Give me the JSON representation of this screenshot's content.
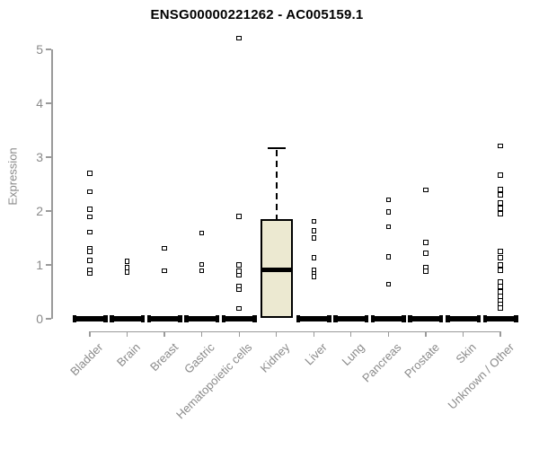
{
  "chart_data": {
    "type": "boxplot",
    "title": "ENSG00000221262 - AC005159.1",
    "ylabel": "Expression",
    "xlabel": "",
    "ylim": [
      0,
      5
    ],
    "yticks": [
      0,
      1,
      2,
      3,
      4,
      5
    ],
    "grid": false,
    "legend": false,
    "categories": [
      "Bladder",
      "Brain",
      "Breast",
      "Gastric",
      "Hematopoietic cells",
      "Kidney",
      "Liver",
      "Lung",
      "Pancreas",
      "Prostate",
      "Skin",
      "Unknown / Other"
    ],
    "series": [
      {
        "category": "Bladder",
        "zero_bar": true,
        "points": [
          2.7,
          2.36,
          2.03,
          1.89,
          1.61,
          1.31,
          1.25,
          1.08,
          0.91,
          0.84
        ]
      },
      {
        "category": "Brain",
        "zero_bar": true,
        "points": [
          1.07,
          0.95,
          0.87
        ]
      },
      {
        "category": "Breast",
        "zero_bar": true,
        "points": [
          1.31,
          0.89
        ]
      },
      {
        "category": "Gastric",
        "zero_bar": true,
        "points": [
          1.59,
          1.01,
          0.89
        ]
      },
      {
        "category": "Hematopoietic cells",
        "zero_bar": true,
        "points": [
          5.21,
          1.9,
          1.0,
          0.88,
          0.81,
          0.61,
          0.54,
          0.19
        ]
      },
      {
        "category": "Kidney",
        "zero_bar": false,
        "points": [],
        "box": {
          "whisker_low": 0.02,
          "q1": 0.02,
          "median": 0.91,
          "q3": 1.85,
          "whisker_high": 3.17
        }
      },
      {
        "category": "Liver",
        "zero_bar": true,
        "points": [
          1.81,
          1.63,
          1.5,
          1.13,
          0.9,
          0.84,
          0.78
        ]
      },
      {
        "category": "Lung",
        "zero_bar": true,
        "points": []
      },
      {
        "category": "Pancreas",
        "zero_bar": true,
        "points": [
          2.21,
          1.98,
          1.71,
          1.15,
          0.64
        ]
      },
      {
        "category": "Prostate",
        "zero_bar": true,
        "points": [
          2.39,
          1.42,
          1.22,
          0.95,
          0.88
        ]
      },
      {
        "category": "Skin",
        "zero_bar": true,
        "points": []
      },
      {
        "category": "Unknown / Other",
        "zero_bar": true,
        "points": [
          3.21,
          2.67,
          2.4,
          2.3,
          2.15,
          2.05,
          1.95,
          1.25,
          1.13,
          1.0,
          0.9,
          0.68,
          0.6,
          0.5,
          0.42,
          0.33,
          0.27,
          0.2
        ]
      }
    ]
  },
  "colors": {
    "box_fill": "#ece9d1",
    "marker_border": "#000000",
    "zero_bar": "#000000",
    "axis_line": "#9a9a9a",
    "tick_label": "#8a8a8a",
    "title": "#000000"
  }
}
